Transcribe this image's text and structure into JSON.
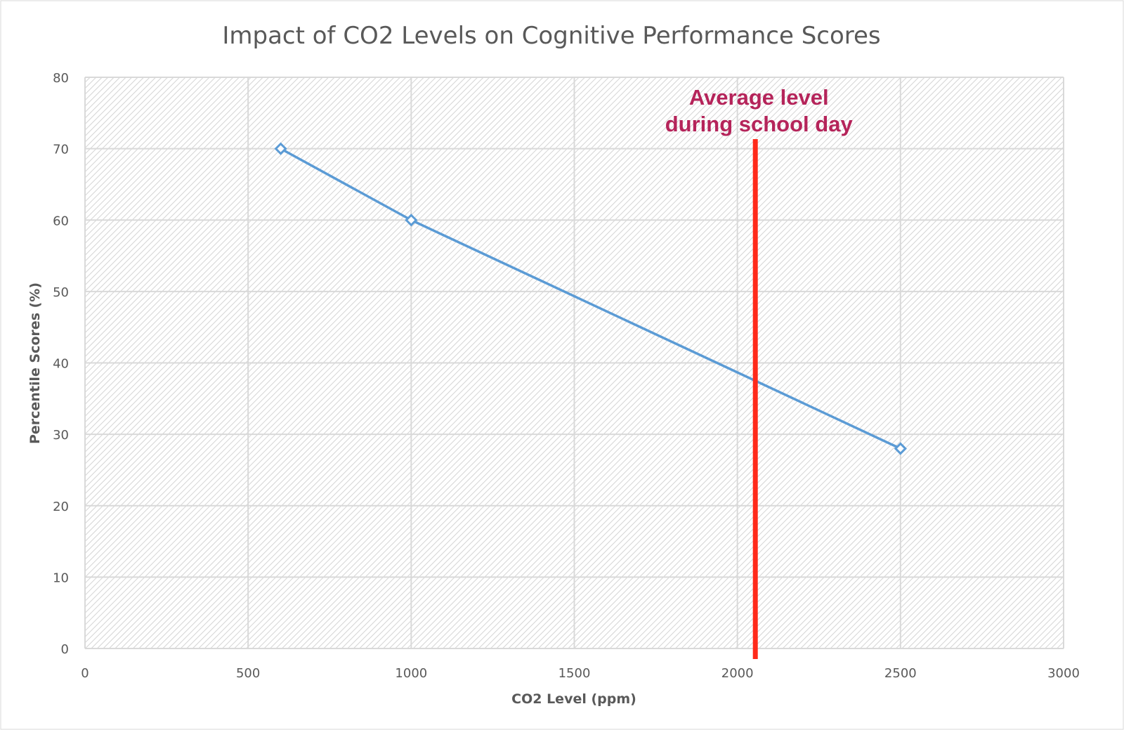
{
  "chart_data": {
    "type": "line",
    "title": "Impact of CO2 Levels on Cognitive Performance Scores",
    "xlabel": "CO2 Level (ppm)",
    "ylabel": "Percentile Scores (%)",
    "xlim": [
      0,
      3000
    ],
    "ylim": [
      0,
      80
    ],
    "xticks": [
      0,
      500,
      1000,
      1500,
      2000,
      2500,
      3000
    ],
    "yticks": [
      0,
      10,
      20,
      30,
      40,
      50,
      60,
      70,
      80
    ],
    "grid": true,
    "series": [
      {
        "name": "Percentile Scores",
        "color": "#5b9bd5",
        "marker": "diamond",
        "x": [
          600,
          1000,
          2500
        ],
        "y": [
          70,
          60,
          28
        ]
      }
    ],
    "annotations": [
      {
        "type": "vertical-line",
        "x": 2055,
        "color": "#ff2a1a",
        "lines": [
          "Average level",
          "during school day"
        ],
        "text_color": "#b5245a"
      }
    ]
  }
}
